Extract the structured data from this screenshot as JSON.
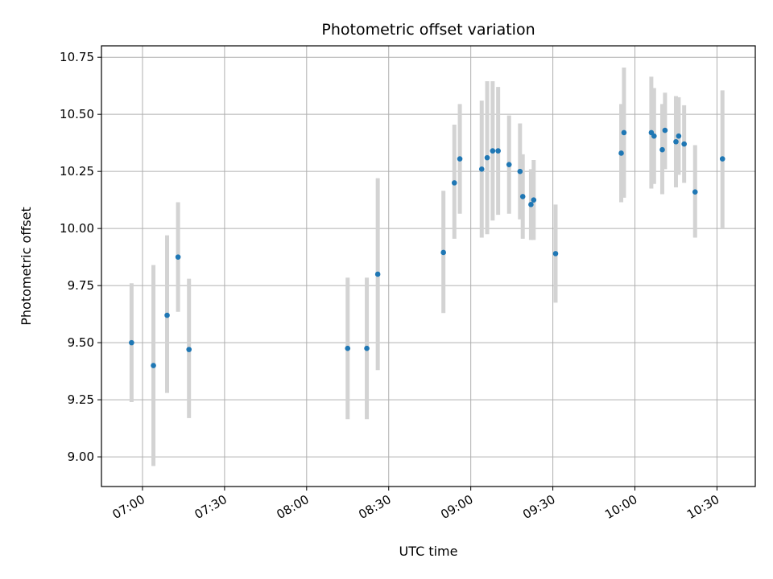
{
  "chart_data": {
    "type": "scatter",
    "title": "Photometric offset variation",
    "xlabel": "UTC time",
    "ylabel": "Photometric offset",
    "x_tick_labels": [
      "07:00",
      "07:30",
      "08:00",
      "08:30",
      "09:00",
      "09:30",
      "10:00",
      "10:30"
    ],
    "x_tick_values": [
      "07:00",
      "07:30",
      "08:00",
      "08:30",
      "09:00",
      "09:30",
      "10:00",
      "10:30"
    ],
    "xlim": [
      "06:45",
      "10:44"
    ],
    "y_tick_labels": [
      "9.00",
      "9.25",
      "9.50",
      "9.75",
      "10.00",
      "10.25",
      "10.50",
      "10.75"
    ],
    "y_tick_values": [
      9.0,
      9.25,
      9.5,
      9.75,
      10.0,
      10.25,
      10.5,
      10.75
    ],
    "ylim": [
      8.87,
      10.8
    ],
    "grid": true,
    "marker_color": "#1f77b4",
    "errorbar_color": "#d3d3d3",
    "points": [
      {
        "x": "06:56",
        "y": 9.5,
        "lo": 9.24,
        "hi": 9.76
      },
      {
        "x": "07:04",
        "y": 9.4,
        "lo": 8.96,
        "hi": 9.84
      },
      {
        "x": "07:09",
        "y": 9.62,
        "lo": 9.28,
        "hi": 9.97
      },
      {
        "x": "07:13",
        "y": 9.875,
        "lo": 9.635,
        "hi": 10.115
      },
      {
        "x": "07:17",
        "y": 9.47,
        "lo": 9.17,
        "hi": 9.78
      },
      {
        "x": "08:15",
        "y": 9.475,
        "lo": 9.165,
        "hi": 9.785
      },
      {
        "x": "08:22",
        "y": 9.475,
        "lo": 9.165,
        "hi": 9.785
      },
      {
        "x": "08:26",
        "y": 9.8,
        "lo": 9.38,
        "hi": 10.22
      },
      {
        "x": "08:50",
        "y": 9.895,
        "lo": 9.63,
        "hi": 10.165
      },
      {
        "x": "08:54",
        "y": 10.2,
        "lo": 9.955,
        "hi": 10.455
      },
      {
        "x": "08:56",
        "y": 10.305,
        "lo": 10.065,
        "hi": 10.545
      },
      {
        "x": "09:04",
        "y": 10.26,
        "lo": 9.96,
        "hi": 10.56
      },
      {
        "x": "09:06",
        "y": 10.31,
        "lo": 9.975,
        "hi": 10.645
      },
      {
        "x": "09:08",
        "y": 10.34,
        "lo": 10.035,
        "hi": 10.645
      },
      {
        "x": "09:10",
        "y": 10.34,
        "lo": 10.06,
        "hi": 10.62
      },
      {
        "x": "09:14",
        "y": 10.28,
        "lo": 10.065,
        "hi": 10.495
      },
      {
        "x": "09:18",
        "y": 10.25,
        "lo": 10.04,
        "hi": 10.46
      },
      {
        "x": "09:19",
        "y": 10.14,
        "lo": 9.955,
        "hi": 10.325
      },
      {
        "x": "09:22",
        "y": 10.105,
        "lo": 9.95,
        "hi": 10.26
      },
      {
        "x": "09:23",
        "y": 10.125,
        "lo": 9.95,
        "hi": 10.3
      },
      {
        "x": "09:31",
        "y": 9.89,
        "lo": 9.675,
        "hi": 10.105
      },
      {
        "x": "09:55",
        "y": 10.33,
        "lo": 10.115,
        "hi": 10.545
      },
      {
        "x": "09:56",
        "y": 10.42,
        "lo": 10.135,
        "hi": 10.705
      },
      {
        "x": "10:06",
        "y": 10.42,
        "lo": 10.175,
        "hi": 10.665
      },
      {
        "x": "10:07",
        "y": 10.405,
        "lo": 10.195,
        "hi": 10.615
      },
      {
        "x": "10:10",
        "y": 10.345,
        "lo": 10.15,
        "hi": 10.545
      },
      {
        "x": "10:11",
        "y": 10.43,
        "lo": 10.26,
        "hi": 10.595
      },
      {
        "x": "10:15",
        "y": 10.38,
        "lo": 10.18,
        "hi": 10.58
      },
      {
        "x": "10:16",
        "y": 10.405,
        "lo": 10.235,
        "hi": 10.575
      },
      {
        "x": "10:18",
        "y": 10.37,
        "lo": 10.2,
        "hi": 10.54
      },
      {
        "x": "10:22",
        "y": 10.16,
        "lo": 9.96,
        "hi": 10.365
      },
      {
        "x": "10:32",
        "y": 10.305,
        "lo": 10.0,
        "hi": 10.605
      }
    ]
  }
}
